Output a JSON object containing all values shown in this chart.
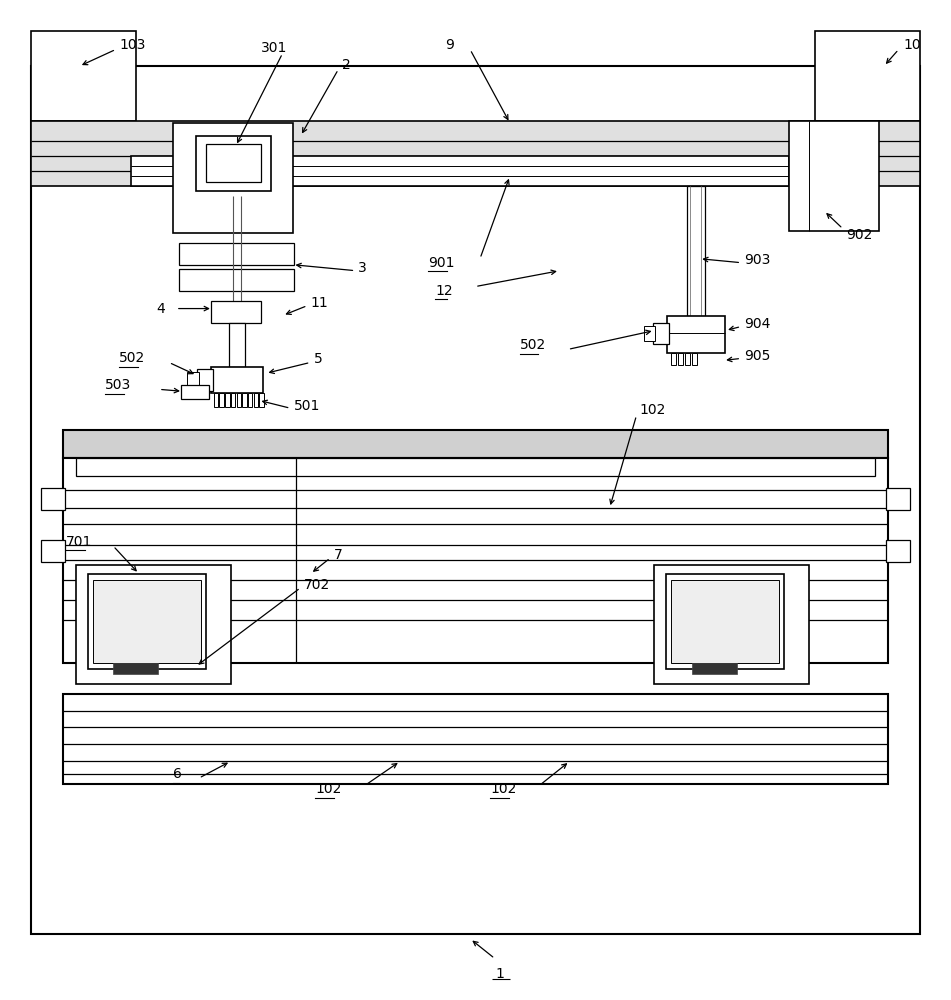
{
  "figsize": [
    9.51,
    10.0
  ],
  "dpi": 100,
  "bg": "#ffffff"
}
